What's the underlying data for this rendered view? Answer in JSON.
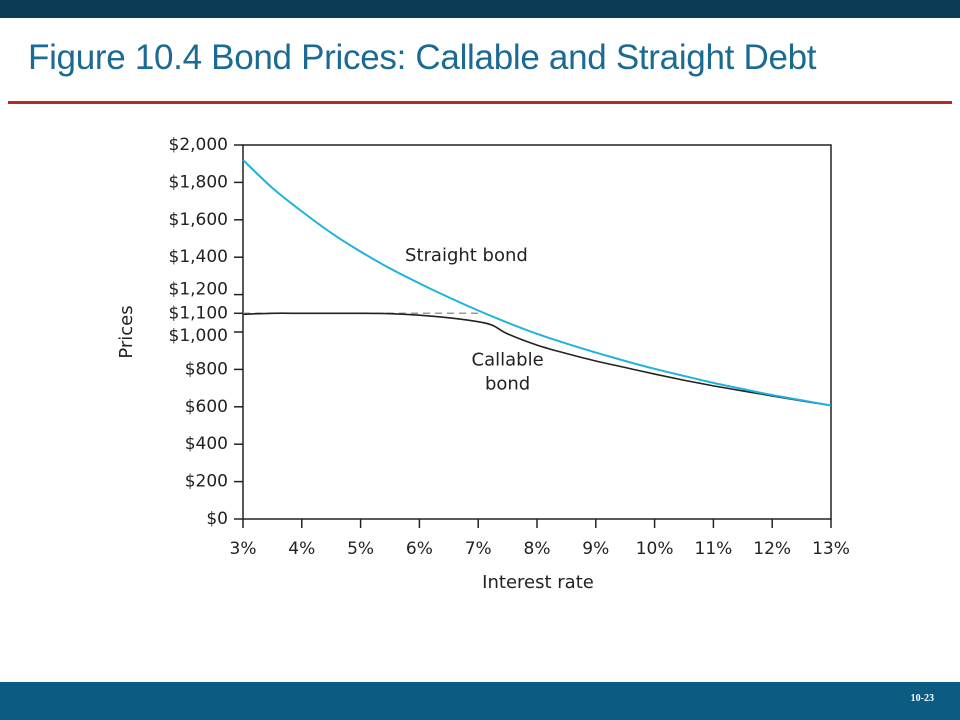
{
  "slide": {
    "title": "Figure 10.4 Bond Prices: Callable and Straight Debt",
    "number": "10-23",
    "colors": {
      "top_bar": "#0b3b55",
      "title": "#1a6a93",
      "rule": "#b22a2a",
      "bottom_bar": "#0b5b82"
    }
  },
  "chart_data": {
    "type": "line",
    "title": "",
    "xlabel": "Interest rate",
    "ylabel": "Prices",
    "xlim": [
      3,
      13
    ],
    "ylim": [
      0,
      2000
    ],
    "x_ticks": [
      3,
      4,
      5,
      6,
      7,
      8,
      9,
      10,
      11,
      12,
      13
    ],
    "x_tick_labels": [
      "3%",
      "4%",
      "5%",
      "6%",
      "7%",
      "8%",
      "9%",
      "10%",
      "11%",
      "12%",
      "13%"
    ],
    "y_ticks": [
      0,
      200,
      400,
      600,
      800,
      1000,
      1100,
      1200,
      1400,
      1600,
      1800,
      2000
    ],
    "y_tick_labels": [
      "$0",
      "$200",
      "$400",
      "$600",
      "$800",
      "$1,000",
      "$1,100",
      "$1,200",
      "$1,400",
      "$1,600",
      "$1,800",
      "$2,000"
    ],
    "grid": false,
    "series": [
      {
        "name": "Straight bond",
        "color": "#1fb3dc",
        "x": [
          3,
          3.5,
          4,
          4.5,
          5,
          5.5,
          6,
          6.5,
          7,
          7.5,
          8,
          8.5,
          9,
          9.5,
          10,
          10.5,
          11,
          11.5,
          12,
          12.5,
          13
        ],
        "y": [
          1920,
          1770,
          1645,
          1530,
          1430,
          1340,
          1260,
          1185,
          1115,
          1050,
          990,
          938,
          890,
          845,
          803,
          765,
          728,
          695,
          663,
          635,
          607
        ]
      },
      {
        "name": "Callable bond",
        "color": "#222222",
        "x": [
          3,
          3.5,
          4,
          4.5,
          5,
          5.5,
          6,
          6.5,
          7,
          7.25,
          7.5,
          8,
          8.5,
          9,
          9.5,
          10,
          10.5,
          11,
          11.5,
          12,
          12.5,
          13
        ],
        "y": [
          1095,
          1100,
          1100,
          1100,
          1100,
          1098,
          1090,
          1076,
          1055,
          1035,
          990,
          930,
          885,
          845,
          810,
          775,
          742,
          712,
          685,
          658,
          632,
          607
        ]
      }
    ],
    "reference_line": {
      "y": 1100,
      "x_from": 3,
      "x_to": 7,
      "style": "dashed",
      "color": "#999999"
    },
    "annotations": [
      {
        "text": "Straight bond",
        "x": 6.8,
        "y": 1380,
        "lines": [
          "Straight bond"
        ]
      },
      {
        "text": "Callable bond",
        "x": 7.5,
        "y": 820,
        "lines": [
          "Callable",
          "bond"
        ]
      }
    ]
  }
}
